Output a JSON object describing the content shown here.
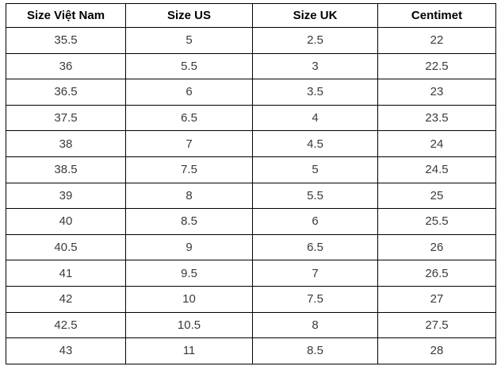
{
  "table": {
    "headers": [
      "Size Việt Nam",
      "Size US",
      "Size UK",
      "Centimet"
    ],
    "rows": [
      [
        "35.5",
        "5",
        "2.5",
        "22"
      ],
      [
        "36",
        "5.5",
        "3",
        "22.5"
      ],
      [
        "36.5",
        "6",
        "3.5",
        "23"
      ],
      [
        "37.5",
        "6.5",
        "4",
        "23.5"
      ],
      [
        "38",
        "7",
        "4.5",
        "24"
      ],
      [
        "38.5",
        "7.5",
        "5",
        "24.5"
      ],
      [
        "39",
        "8",
        "5.5",
        "25"
      ],
      [
        "40",
        "8.5",
        "6",
        "25.5"
      ],
      [
        "40.5",
        "9",
        "6.5",
        "26"
      ],
      [
        "41",
        "9.5",
        "7",
        "26.5"
      ],
      [
        "42",
        "10",
        "7.5",
        "27"
      ],
      [
        "42.5",
        "10.5",
        "8",
        "27.5"
      ],
      [
        "43",
        "11",
        "8.5",
        "28"
      ]
    ],
    "colors": {
      "border": "#000000",
      "header_text": "#000000",
      "cell_text": "#3b3b3b",
      "background": "#ffffff"
    }
  },
  "chart_data": {
    "type": "table",
    "title": "",
    "columns": [
      "Size Việt Nam",
      "Size US",
      "Size UK",
      "Centimet"
    ],
    "rows": [
      [
        35.5,
        5,
        2.5,
        22
      ],
      [
        36,
        5.5,
        3,
        22.5
      ],
      [
        36.5,
        6,
        3.5,
        23
      ],
      [
        37.5,
        6.5,
        4,
        23.5
      ],
      [
        38,
        7,
        4.5,
        24
      ],
      [
        38.5,
        7.5,
        5,
        24.5
      ],
      [
        39,
        8,
        5.5,
        25
      ],
      [
        40,
        8.5,
        6,
        25.5
      ],
      [
        40.5,
        9,
        6.5,
        26
      ],
      [
        41,
        9.5,
        7,
        26.5
      ],
      [
        42,
        10,
        7.5,
        27
      ],
      [
        42.5,
        10.5,
        8,
        27.5
      ],
      [
        43,
        11,
        8.5,
        28
      ]
    ]
  }
}
